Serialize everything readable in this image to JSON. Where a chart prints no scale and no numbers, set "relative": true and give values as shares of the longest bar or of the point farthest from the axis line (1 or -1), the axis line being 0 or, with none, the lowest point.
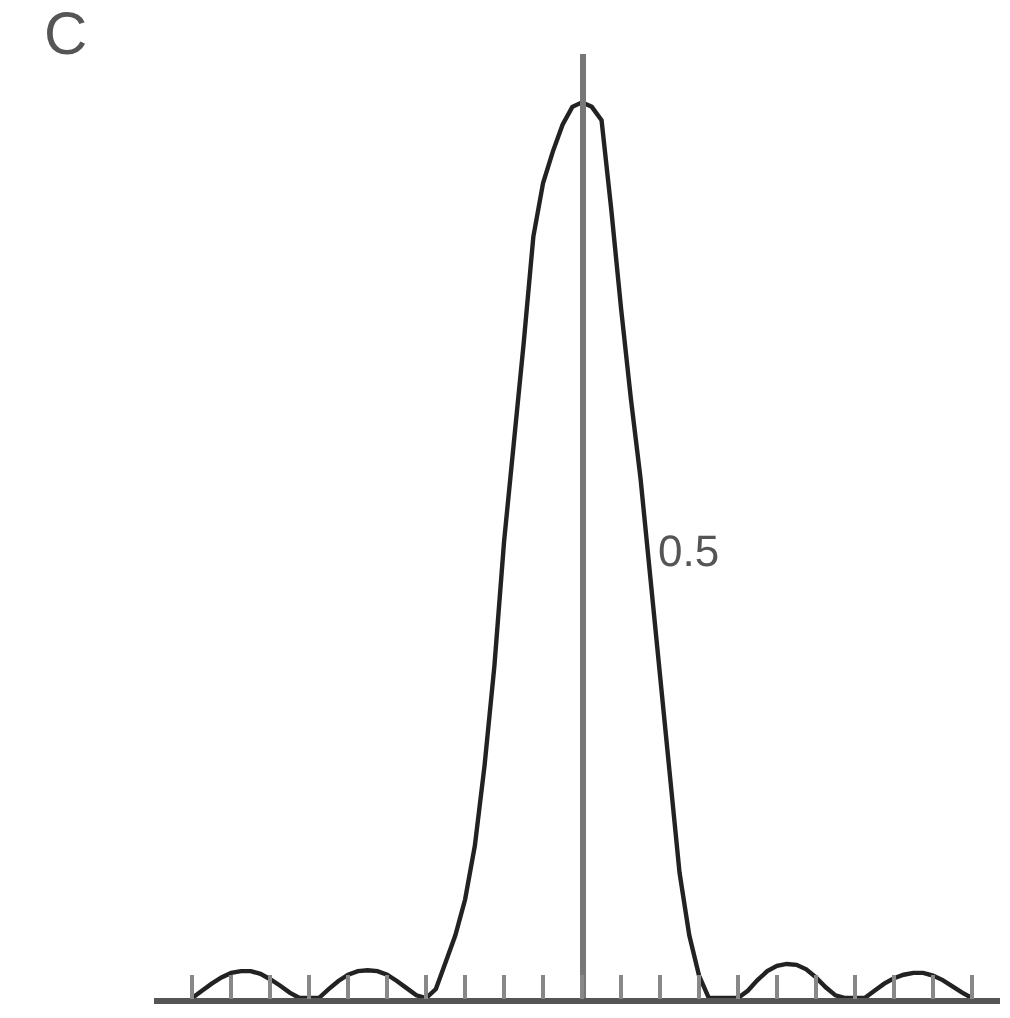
{
  "chart_data": {
    "type": "line",
    "title": "C",
    "relative": true,
    "color": "#222222",
    "marker": "none",
    "line_style": "solid",
    "grid": false,
    "categories": [
      null,
      null,
      null,
      null,
      null,
      null,
      null,
      null,
      null,
      null,
      null,
      null,
      null,
      null,
      null,
      null,
      null,
      null,
      null,
      null,
      null,
      null,
      null,
      null,
      null,
      null,
      null,
      null,
      null,
      null,
      null,
      null,
      null,
      null,
      null,
      null,
      null,
      null,
      null,
      null,
      null,
      null,
      null,
      null,
      null,
      null,
      null,
      null,
      null,
      null,
      null,
      null,
      null,
      null,
      null,
      null,
      null,
      null,
      null,
      null,
      null,
      null,
      null,
      null,
      null,
      null,
      null,
      null,
      null,
      null,
      null,
      null,
      null,
      null,
      null,
      null,
      null,
      null,
      null,
      null,
      null
    ],
    "values": [
      0.0,
      0.008,
      0.016,
      0.023,
      0.028,
      0.03,
      0.03,
      0.027,
      0.021,
      0.014,
      0.006,
      0.0,
      0.0,
      0.0,
      0.01,
      0.019,
      0.026,
      0.03,
      0.031,
      0.03,
      0.026,
      0.019,
      0.011,
      0.003,
      0.0,
      0.01,
      0.04,
      0.07,
      0.11,
      0.17,
      0.26,
      0.37,
      0.51,
      0.62,
      0.73,
      0.85,
      0.91,
      0.945,
      0.975,
      0.995,
      1.0,
      0.995,
      0.98,
      0.88,
      0.77,
      0.67,
      0.58,
      0.47,
      0.36,
      0.25,
      0.14,
      0.07,
      0.025,
      0.0,
      0.0,
      0.0,
      0.0,
      0.008,
      0.02,
      0.03,
      0.036,
      0.038,
      0.037,
      0.032,
      0.023,
      0.012,
      0.003,
      0.0,
      0.0,
      0.0,
      0.008,
      0.016,
      0.022,
      0.026,
      0.028,
      0.028,
      0.025,
      0.02,
      0.013,
      0.006,
      0.0
    ],
    "annotations": [
      "0.5"
    ]
  }
}
